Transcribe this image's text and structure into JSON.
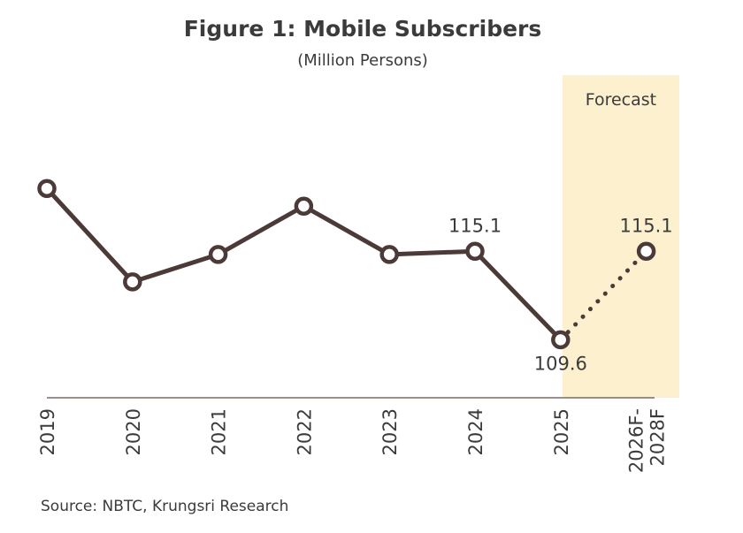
{
  "chart_data": {
    "type": "line",
    "title": "Figure 1: Mobile Subscribers",
    "subtitle": "(Million Persons)",
    "xlabel": "",
    "ylabel": "",
    "ylim": [
      106,
      120
    ],
    "categories": [
      "2019",
      "2020",
      "2021",
      "2022",
      "2023",
      "2024",
      "2025",
      "2026F-2028F"
    ],
    "series": [
      {
        "name": "Mobile Subscribers",
        "values": [
          119.0,
          113.2,
          114.9,
          117.9,
          114.9,
          115.1,
          109.6,
          115.1
        ],
        "forecast_from_index": 6
      }
    ],
    "data_labels": [
      {
        "index": 5,
        "text": "115.1",
        "position": "above"
      },
      {
        "index": 6,
        "text": "109.6",
        "position": "below"
      },
      {
        "index": 7,
        "text": "115.1",
        "position": "above"
      }
    ],
    "forecast_band": {
      "label": "Forecast",
      "start_index": 7
    },
    "grid": false,
    "legend": "none"
  },
  "source": "Source: NBTC, Krungsri Research",
  "colors": {
    "line": "#4b3a38",
    "forecast_band": "#fdf0cf",
    "axis": "#7a6a66",
    "text": "#3b3b3b"
  }
}
